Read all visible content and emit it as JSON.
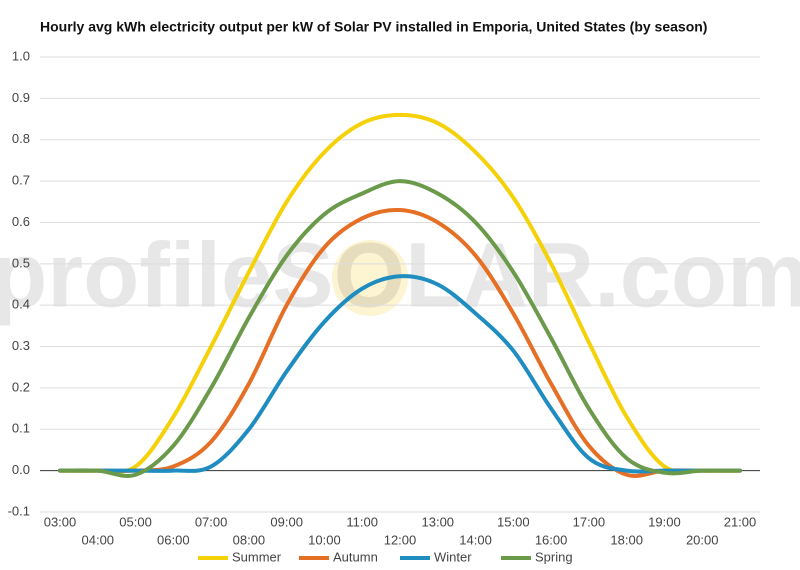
{
  "chart_data": {
    "type": "line",
    "title": "Hourly avg kWh electricity output per kW of Solar PV installed in Emporia, United States (by season)",
    "watermark": "profileSOLAR.com",
    "categories": [
      "03:00",
      "04:00",
      "05:00",
      "06:00",
      "07:00",
      "08:00",
      "09:00",
      "10:00",
      "11:00",
      "12:00",
      "13:00",
      "14:00",
      "15:00",
      "16:00",
      "17:00",
      "18:00",
      "19:00",
      "20:00",
      "21:00"
    ],
    "series": [
      {
        "name": "Summer",
        "color": "#f5d10a",
        "values": [
          0,
          0,
          0.01,
          0.13,
          0.3,
          0.48,
          0.65,
          0.77,
          0.84,
          0.86,
          0.84,
          0.77,
          0.66,
          0.5,
          0.31,
          0.13,
          0.01,
          0,
          0
        ]
      },
      {
        "name": "Autumn",
        "color": "#e56f25",
        "values": [
          0,
          0,
          0,
          0.01,
          0.07,
          0.21,
          0.4,
          0.54,
          0.61,
          0.63,
          0.6,
          0.52,
          0.38,
          0.21,
          0.06,
          -0.01,
          0,
          0,
          0
        ]
      },
      {
        "name": "Winter",
        "color": "#1f8dbf",
        "values": [
          0,
          0,
          0,
          0,
          0.01,
          0.1,
          0.24,
          0.36,
          0.44,
          0.47,
          0.45,
          0.38,
          0.29,
          0.15,
          0.03,
          0,
          0,
          0,
          0
        ]
      },
      {
        "name": "Spring",
        "color": "#6b9a4b",
        "values": [
          0,
          0,
          -0.01,
          0.06,
          0.2,
          0.37,
          0.52,
          0.62,
          0.67,
          0.7,
          0.67,
          0.6,
          0.48,
          0.32,
          0.15,
          0.03,
          -0.005,
          0,
          0
        ]
      }
    ],
    "ylim": [
      -0.1,
      1.0
    ],
    "yticks": [
      -0.1,
      {
        "value": 0,
        "label": "0.0"
      },
      0.1,
      0.2,
      0.3,
      0.4,
      0.5,
      0.6,
      0.7,
      0.8,
      0.9,
      {
        "value": 1,
        "label": "1.0"
      }
    ],
    "grid": true,
    "legend": "bottom"
  }
}
